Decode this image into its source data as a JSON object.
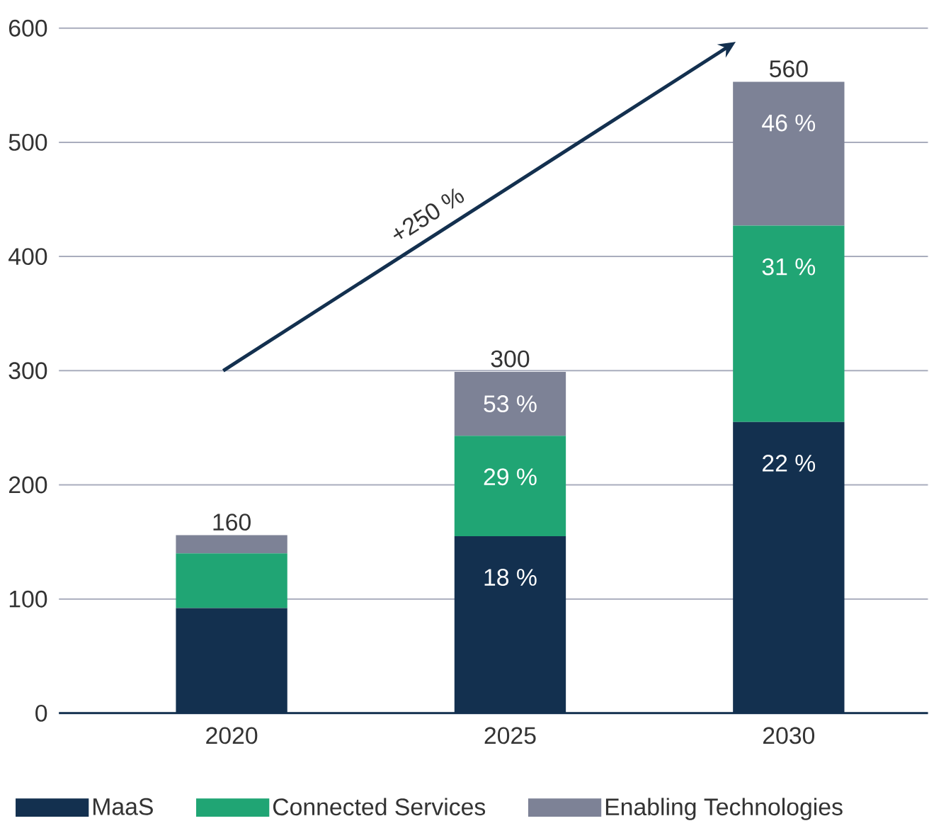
{
  "chart_data": {
    "type": "bar",
    "stacked": true,
    "categories": [
      "2020",
      "2025",
      "2030"
    ],
    "series": [
      {
        "name": "MaaS",
        "color": "#13304f",
        "values": [
          92,
          155,
          255
        ]
      },
      {
        "name": "Connected Services",
        "color": "#20a574",
        "values": [
          48,
          88,
          172
        ]
      },
      {
        "name": "Enabling Technologies",
        "color": "#7d8296",
        "values": [
          16,
          56,
          126
        ]
      }
    ],
    "annotations": [
      "+250 %",
      {
        "text": "160",
        "x": "2020",
        "y": 156
      },
      {
        "text": "300",
        "x": "2025",
        "y": 299
      },
      {
        "text": "560",
        "x": "2030",
        "y": 553
      },
      {
        "text": "18 %",
        "x": "2025",
        "y": 155
      },
      {
        "text": "29 %",
        "x": "2025",
        "y": 243
      },
      {
        "text": "53 %",
        "x": "2025",
        "y": 299
      },
      {
        "text": "22 %",
        "x": "2030",
        "y": 255
      },
      {
        "text": "31 %",
        "x": "2030",
        "y": 427
      },
      {
        "text": "46 %",
        "x": "2030",
        "y": 553
      }
    ],
    "ylim": [
      0,
      600
    ],
    "yticks": [
      0,
      100,
      200,
      300,
      400,
      500,
      600
    ],
    "grid": "y",
    "legend": "bottom"
  }
}
